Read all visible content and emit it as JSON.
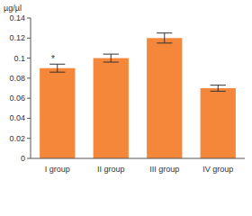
{
  "chart_data": {
    "type": "bar",
    "y_label": "µg/µl",
    "categories": [
      "I group",
      "II group",
      "III group",
      "IV group"
    ],
    "values": [
      0.09,
      0.1,
      0.12,
      0.07
    ],
    "errors": [
      0.004,
      0.004,
      0.005,
      0.003
    ],
    "color": "#f5873a",
    "ylim": [
      0,
      0.14
    ],
    "yticks": [
      0,
      0.02,
      0.04,
      0.06,
      0.08,
      0.1,
      0.12,
      0.14
    ],
    "grid": false,
    "annotations": [
      {
        "text": "*",
        "category": "I group"
      }
    ]
  }
}
